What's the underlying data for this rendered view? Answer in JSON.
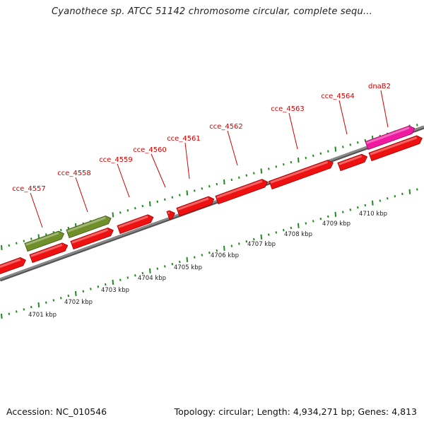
{
  "title": "Cyanothece sp. ATCC 51142 chromosome circular, complete sequ...",
  "footer": {
    "accession": "Accession: NC_010546",
    "summary": "Topology: circular; Length: 4,934,271 bp; Genes: 4,813"
  },
  "colors": {
    "backbone": "#8a8a8a",
    "tick": "#1f8a1f",
    "gene_red": "#ee1111",
    "gene_olive": "#6f8f2a",
    "gene_magenta": "#f01aa0",
    "label": "#d00000"
  },
  "gene_labels": [
    "cce_4557",
    "cce_4558",
    "cce_4559",
    "cce_4560",
    "cce_4561",
    "cce_4562",
    "cce_4563",
    "cce_4564",
    "dnaB2"
  ],
  "kbp_labels": [
    "4701 kbp",
    "4702 kbp",
    "4703 kbp",
    "4704 kbp",
    "4705 kbp",
    "4706 kbp",
    "4707 kbp",
    "4708 kbp",
    "4709 kbp",
    "4710 kbp"
  ]
}
